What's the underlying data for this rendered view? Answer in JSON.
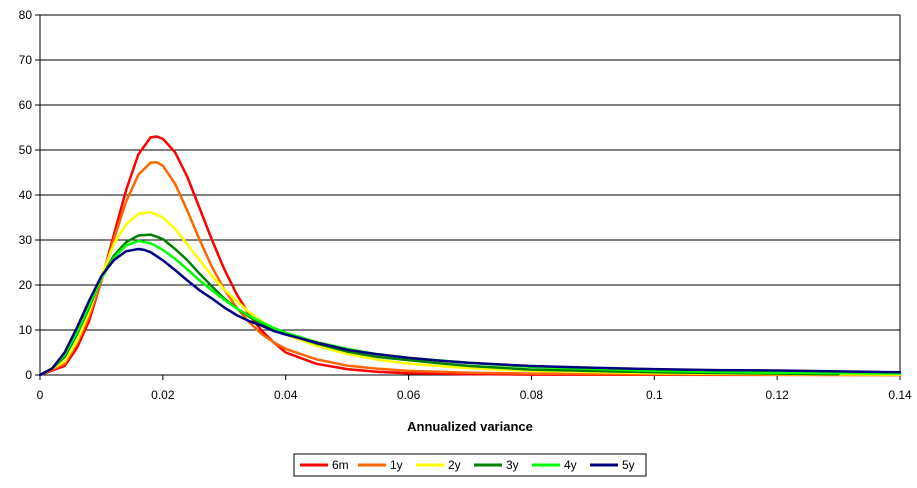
{
  "chart_data": {
    "type": "line",
    "xlabel": "Annualized variance",
    "ylabel": "",
    "xlim": [
      0,
      0.14
    ],
    "ylim": [
      0,
      80
    ],
    "xticks": [
      "0",
      "0.02",
      "0.04",
      "0.06",
      "0.08",
      "0.1",
      "0.12",
      "0.14"
    ],
    "yticks": [
      "0",
      "10",
      "20",
      "30",
      "40",
      "50",
      "60",
      "70",
      "80"
    ],
    "grid": "horizontal",
    "legend_position": "bottom",
    "series": [
      {
        "name": "6m",
        "color": "#ff0000",
        "x": [
          0,
          0.004,
          0.006,
          0.008,
          0.01,
          0.012,
          0.014,
          0.016,
          0.018,
          0.019,
          0.02,
          0.022,
          0.024,
          0.026,
          0.028,
          0.03,
          0.032,
          0.034,
          0.036,
          0.038,
          0.04,
          0.045,
          0.05,
          0.055,
          0.06,
          0.07,
          0.08,
          0.1,
          0.14
        ],
        "y": [
          0,
          2,
          6,
          12,
          21,
          31,
          41,
          49,
          52.8,
          53,
          52.5,
          49.5,
          44,
          37,
          30,
          23.5,
          18,
          13.5,
          10,
          7.3,
          5,
          2.5,
          1.3,
          0.7,
          0.4,
          0.2,
          0.1,
          0.05,
          0
        ]
      },
      {
        "name": "1y",
        "color": "#ff6600",
        "x": [
          0,
          0.004,
          0.006,
          0.008,
          0.01,
          0.012,
          0.014,
          0.016,
          0.018,
          0.019,
          0.02,
          0.022,
          0.024,
          0.026,
          0.028,
          0.03,
          0.032,
          0.034,
          0.036,
          0.038,
          0.04,
          0.045,
          0.05,
          0.055,
          0.06,
          0.07,
          0.08,
          0.1,
          0.14
        ],
        "y": [
          0,
          2.5,
          7,
          13,
          21,
          30,
          38.5,
          44.5,
          47.2,
          47.3,
          46.5,
          42.5,
          36.5,
          30,
          24,
          19,
          15,
          11.8,
          9.2,
          7.3,
          5.8,
          3.5,
          2.1,
          1.4,
          0.9,
          0.5,
          0.3,
          0.15,
          0
        ]
      },
      {
        "name": "2y",
        "color": "#ffff00",
        "x": [
          0,
          0.004,
          0.006,
          0.008,
          0.01,
          0.012,
          0.014,
          0.016,
          0.018,
          0.02,
          0.022,
          0.024,
          0.026,
          0.028,
          0.03,
          0.032,
          0.034,
          0.036,
          0.038,
          0.04,
          0.045,
          0.05,
          0.055,
          0.06,
          0.07,
          0.08,
          0.1,
          0.12,
          0.14
        ],
        "y": [
          0,
          3,
          7.5,
          14,
          22,
          29,
          33.5,
          35.8,
          36.2,
          35,
          32.5,
          29,
          25.5,
          22,
          19,
          16.5,
          14,
          12,
          10.5,
          9,
          6.5,
          4.7,
          3.4,
          2.5,
          1.5,
          0.9,
          0.4,
          0.2,
          0.1
        ]
      },
      {
        "name": "3y",
        "color": "#008000",
        "x": [
          0,
          0.002,
          0.004,
          0.006,
          0.008,
          0.01,
          0.012,
          0.014,
          0.016,
          0.018,
          0.02,
          0.022,
          0.024,
          0.026,
          0.028,
          0.03,
          0.032,
          0.034,
          0.036,
          0.038,
          0.04,
          0.045,
          0.05,
          0.055,
          0.06,
          0.065,
          0.07,
          0.08,
          0.1,
          0.12,
          0.13
        ],
        "y": [
          0,
          1.5,
          4,
          9,
          15,
          21.5,
          26.5,
          29.5,
          31,
          31.2,
          30.2,
          28,
          25.5,
          22.5,
          19.7,
          17,
          14.8,
          13,
          11.5,
          10.3,
          9.2,
          7,
          5.2,
          4,
          3.3,
          2.6,
          2,
          1.2,
          0.6,
          0.3,
          0.2
        ]
      },
      {
        "name": "4y",
        "color": "#00ff00",
        "x": [
          0,
          0.002,
          0.004,
          0.006,
          0.008,
          0.01,
          0.012,
          0.014,
          0.016,
          0.018,
          0.02,
          0.022,
          0.024,
          0.026,
          0.028,
          0.03,
          0.032,
          0.034,
          0.036,
          0.038,
          0.04,
          0.045,
          0.05,
          0.055,
          0.06,
          0.07,
          0.08,
          0.1,
          0.12,
          0.14
        ],
        "y": [
          0,
          1.5,
          4.5,
          9.5,
          15.5,
          21.5,
          26,
          28.8,
          29.8,
          29.3,
          27.8,
          25.8,
          23.5,
          21,
          18.8,
          16.7,
          14.8,
          13.2,
          11.8,
          10.5,
          9.4,
          7.3,
          5.8,
          4.6,
          3.8,
          2.7,
          1.8,
          0.9,
          0.5,
          0.3
        ]
      },
      {
        "name": "5y",
        "color": "#000080",
        "x": [
          0,
          0.002,
          0.004,
          0.006,
          0.008,
          0.01,
          0.012,
          0.014,
          0.016,
          0.017,
          0.018,
          0.02,
          0.022,
          0.024,
          0.026,
          0.028,
          0.03,
          0.032,
          0.034,
          0.036,
          0.038,
          0.04,
          0.045,
          0.05,
          0.055,
          0.06,
          0.065,
          0.07,
          0.08,
          0.09,
          0.1,
          0.11,
          0.12,
          0.13,
          0.14
        ],
        "y": [
          0,
          1.5,
          5,
          10.5,
          16.5,
          22,
          25.5,
          27.5,
          28,
          27.8,
          27.3,
          25.5,
          23.3,
          21,
          18.8,
          17,
          15,
          13.3,
          12,
          11,
          9.8,
          9,
          7.2,
          5.6,
          4.6,
          3.8,
          3.2,
          2.7,
          2,
          1.6,
          1.3,
          1.1,
          1,
          0.8,
          0.6
        ]
      }
    ]
  }
}
